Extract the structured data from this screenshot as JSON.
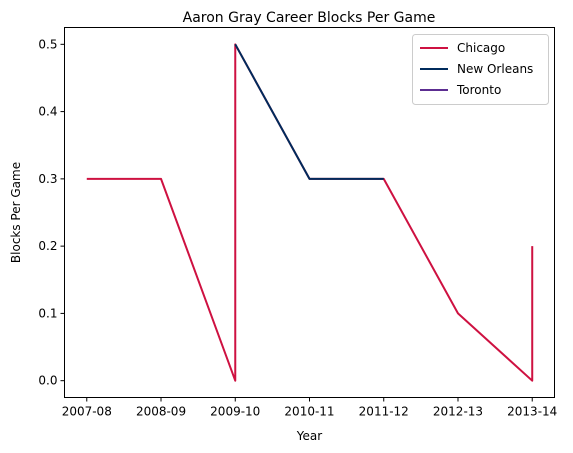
{
  "chart_data": {
    "type": "line",
    "title": "Aaron Gray Career Blocks Per Game",
    "xlabel": "Year",
    "ylabel": "Blocks Per Game",
    "categories": [
      "2007-08",
      "2008-09",
      "2009-10",
      "2010-11",
      "2011-12",
      "2012-13",
      "2013-14"
    ],
    "yticks": [
      "0.0",
      "0.1",
      "0.2",
      "0.3",
      "0.4",
      "0.5"
    ],
    "ylim": [
      -0.025,
      0.525
    ],
    "grid": false,
    "legend_position": "top-right",
    "series": [
      {
        "name": "Chicago",
        "color": "#ce1141",
        "points": [
          [
            0,
            0.3
          ],
          [
            1,
            0.3
          ],
          [
            2,
            0.0
          ],
          [
            2,
            0.5
          ],
          [
            3,
            0.3
          ],
          [
            4,
            0.3
          ],
          [
            5,
            0.1
          ],
          [
            6,
            0.0
          ],
          [
            6,
            0.2
          ]
        ]
      },
      {
        "name": "New Orleans",
        "color": "#002b5c",
        "points": [
          [
            2,
            0.5
          ],
          [
            3,
            0.3
          ],
          [
            4,
            0.3
          ]
        ]
      },
      {
        "name": "Toronto",
        "color": "#5c2d91",
        "points": []
      }
    ]
  }
}
